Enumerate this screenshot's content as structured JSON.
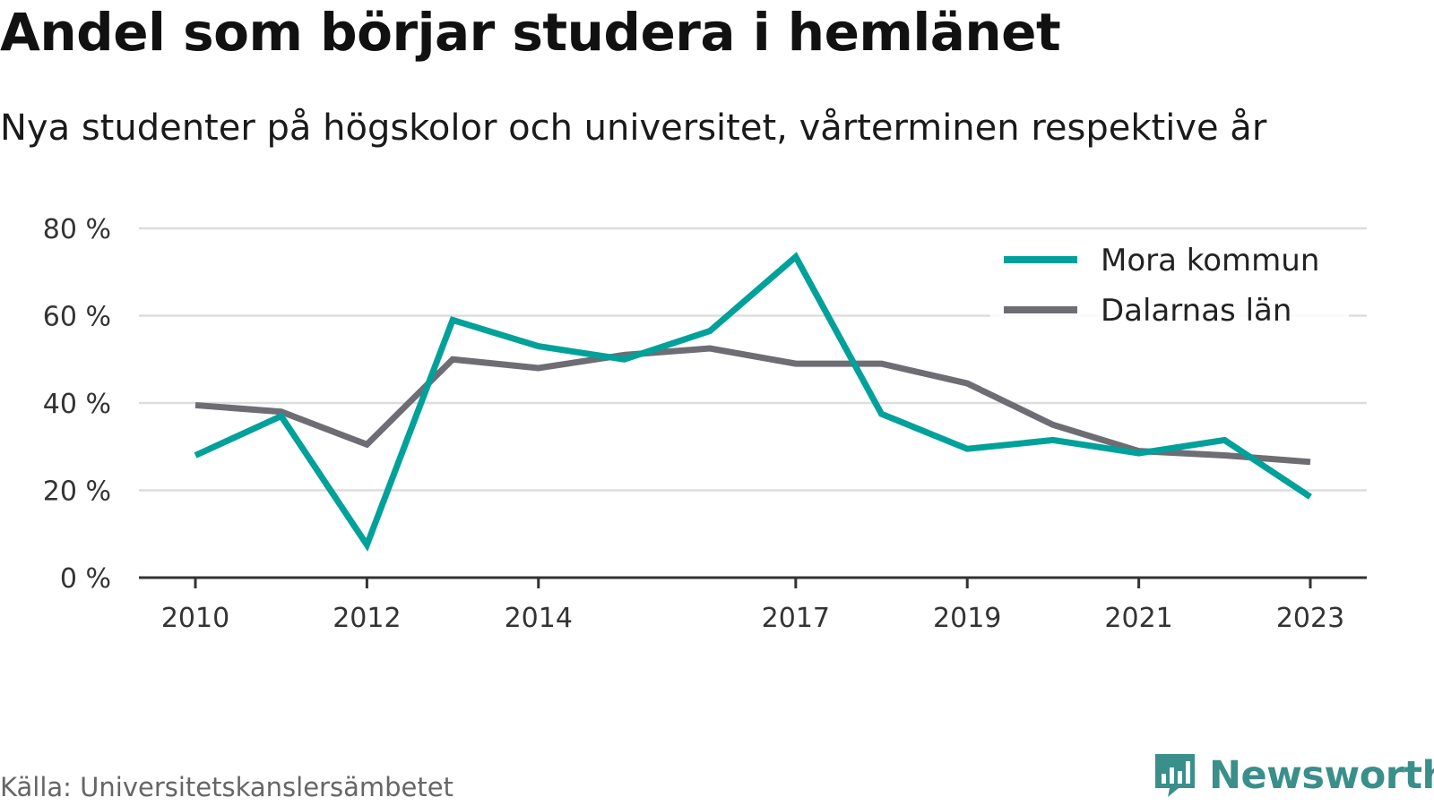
{
  "header": {
    "title": "Andel som börjar studera i hemlänet",
    "subtitle": "Nya studenter på högskolor och universitet, vårterminen respektive år"
  },
  "footer": {
    "source": "Källa: Universitetskanslersämbetet",
    "brand": "Newsworthy",
    "brand_icon": "chart-speech-bubble-icon",
    "brand_color": "#3a8f8a"
  },
  "chart_data": {
    "type": "line",
    "x": [
      2010,
      2011,
      2012,
      2013,
      2014,
      2015,
      2016,
      2017,
      2018,
      2019,
      2020,
      2021,
      2022,
      2023
    ],
    "x_tick_values": [
      2010,
      2012,
      2014,
      2017,
      2019,
      2021,
      2023
    ],
    "x_tick_labels": [
      "2010",
      "2012",
      "2014",
      "2017",
      "2019",
      "2021",
      "2023"
    ],
    "y_tick_values": [
      0,
      20,
      40,
      60,
      80
    ],
    "y_tick_labels": [
      "0 %",
      "20 %",
      "40 %",
      "60 %",
      "80 %"
    ],
    "ylim": [
      0,
      80
    ],
    "grid": true,
    "legend_position": "top-right",
    "series": [
      {
        "name": "Mora kommun",
        "color": "#00a19a",
        "values": [
          28,
          37,
          7.5,
          59,
          53,
          50,
          56.5,
          73.5,
          37.5,
          29.5,
          31.5,
          28.5,
          31.5,
          18.5
        ]
      },
      {
        "name": "Dalarnas län",
        "color": "#6e6d74",
        "values": [
          39.5,
          38,
          30.5,
          50,
          48,
          51,
          52.5,
          49,
          49,
          44.5,
          35,
          29,
          28,
          26.5
        ]
      }
    ]
  }
}
